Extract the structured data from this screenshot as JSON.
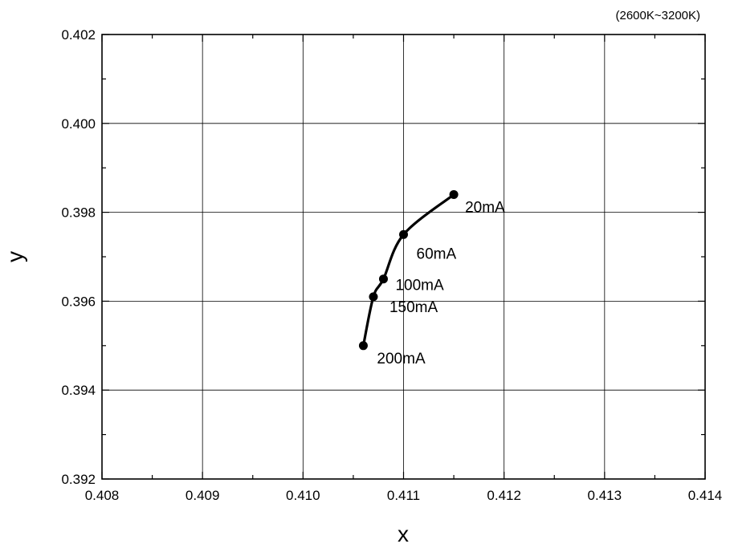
{
  "chart_data": {
    "type": "line",
    "title": "",
    "subtitle": "(2600K~3200K)",
    "xlabel": "x",
    "ylabel": "y",
    "xlim": [
      0.408,
      0.414
    ],
    "ylim": [
      0.392,
      0.402
    ],
    "x_ticks": [
      "0.408",
      "0.409",
      "0.410",
      "0.411",
      "0.412",
      "0.413",
      "0.414"
    ],
    "y_ticks": [
      "0.392",
      "0.394",
      "0.396",
      "0.398",
      "0.400",
      "0.402"
    ],
    "grid": true,
    "series": [
      {
        "points": [
          {
            "x": 0.4115,
            "y": 0.3984,
            "label": "20mA"
          },
          {
            "x": 0.411,
            "y": 0.3975,
            "label": "60mA"
          },
          {
            "x": 0.4108,
            "y": 0.3965,
            "label": "100mA"
          },
          {
            "x": 0.4107,
            "y": 0.3961,
            "label": "150mA"
          },
          {
            "x": 0.4106,
            "y": 0.395,
            "label": "200mA"
          }
        ],
        "color": "#000000",
        "marker": "filled-circle"
      }
    ]
  }
}
